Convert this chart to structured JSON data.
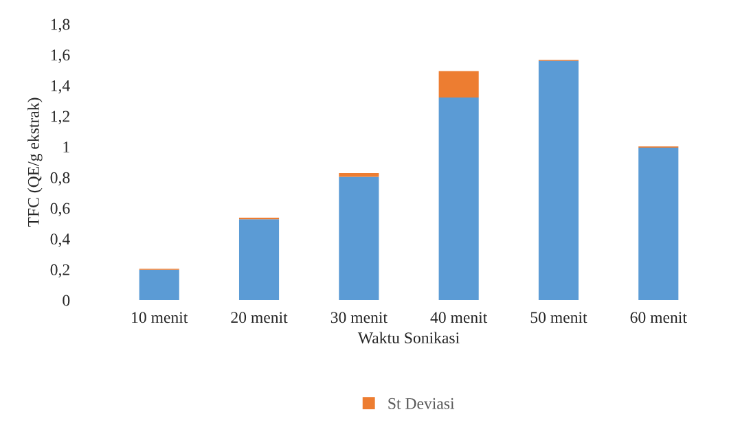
{
  "chart_data": {
    "type": "bar",
    "stacked": true,
    "xlabel": "Waktu Sonikasi",
    "ylabel": "TFC (QE/g ekstrak)",
    "categories": [
      "10 menit",
      "20 menit",
      "30 menit",
      "40 menit",
      "50 menit",
      "60 menit"
    ],
    "series": [
      {
        "color": "#5b9bd5",
        "values": [
          0.198,
          0.527,
          0.804,
          1.321,
          1.561,
          0.994
        ]
      },
      {
        "name": "St Deviasi",
        "color": "#ed7d31",
        "values": [
          0.006,
          0.01,
          0.024,
          0.172,
          0.006,
          0.008
        ]
      }
    ],
    "ylim": [
      0,
      1.8
    ],
    "yticks": [
      0,
      {
        "value": 0.2,
        "label": "0,2"
      },
      {
        "value": 0.4,
        "label": "0,4"
      },
      {
        "value": 0.6,
        "label": "0,6"
      },
      {
        "value": 0.8,
        "label": "0,8"
      },
      1,
      {
        "value": 1.2,
        "label": "1,2"
      },
      {
        "value": 1.4,
        "label": "1,4"
      },
      {
        "value": 1.6,
        "label": "1,6"
      },
      {
        "value": 1.8,
        "label": "1,8"
      }
    ],
    "grid": false,
    "legend": "bottom"
  }
}
